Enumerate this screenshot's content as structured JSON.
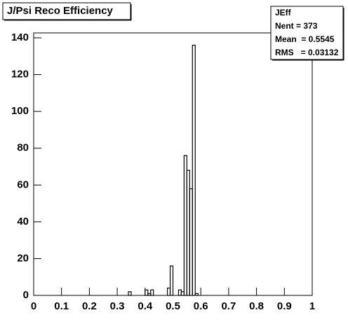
{
  "chart_data": {
    "type": "histogram",
    "title": "J/Psi Reco Efficiency",
    "stats": {
      "name": "JEff",
      "lines": [
        "Nent = 373",
        "Mean  = 0.5545",
        "RMS   = 0.03132"
      ]
    },
    "bins": [
      0,
      0.01,
      0.02,
      0.03,
      0.04,
      0.05,
      0.06,
      0.07,
      0.08,
      0.09,
      0.1,
      0.11,
      0.12,
      0.13,
      0.14,
      0.15,
      0.16,
      0.17,
      0.18,
      0.19,
      0.2,
      0.21,
      0.22,
      0.23,
      0.24,
      0.25,
      0.26,
      0.27,
      0.28,
      0.29,
      0.3,
      0.31,
      0.32,
      0.33,
      0.34,
      0.35,
      0.36,
      0.37,
      0.38,
      0.39,
      0.4,
      0.41,
      0.42,
      0.43,
      0.44,
      0.45,
      0.46,
      0.47,
      0.48,
      0.49,
      0.5,
      0.51,
      0.52,
      0.53,
      0.54,
      0.55,
      0.56,
      0.57,
      0.58,
      0.59,
      0.6,
      0.61,
      0.62,
      0.63,
      0.64,
      0.65,
      0.66,
      0.67,
      0.68,
      0.69,
      0.7,
      0.71,
      0.72,
      0.73,
      0.74,
      0.75,
      0.76,
      0.77,
      0.78,
      0.79,
      0.8,
      0.81,
      0.82,
      0.83,
      0.84,
      0.85,
      0.86,
      0.87,
      0.88,
      0.89,
      0.9,
      0.91,
      0.92,
      0.93,
      0.94,
      0.95,
      0.96,
      0.97,
      0.98,
      0.99,
      1
    ],
    "counts": [
      0,
      0,
      0,
      0,
      0,
      0,
      0,
      0,
      0,
      0,
      0,
      0,
      0,
      0,
      0,
      0,
      0,
      0,
      0,
      0,
      0,
      0,
      0,
      0,
      0,
      0,
      0,
      0,
      0,
      0,
      0,
      0,
      0,
      0,
      2,
      0,
      0,
      0,
      0,
      0,
      3,
      1,
      3,
      0,
      0,
      0,
      0,
      0,
      4,
      16,
      0,
      0,
      3,
      2,
      76,
      68,
      58,
      136,
      1,
      0,
      0,
      0,
      0,
      0,
      0,
      0,
      0,
      0,
      0,
      0,
      0,
      0,
      0,
      0,
      0,
      0,
      0,
      0,
      0,
      0,
      0,
      0,
      0,
      0,
      0,
      0,
      0,
      0,
      0,
      0,
      0,
      0,
      0,
      0,
      0,
      0,
      0,
      0,
      0,
      0
    ],
    "color": "#000000",
    "xlim": [
      0,
      1
    ],
    "xticks": [
      0,
      0.1,
      0.2,
      0.3,
      0.4,
      0.5,
      0.6,
      0.7,
      0.8,
      0.9,
      1
    ],
    "ylim": [
      0,
      140
    ],
    "yticks": [
      0,
      20,
      40,
      60,
      80,
      100,
      120,
      140
    ]
  }
}
